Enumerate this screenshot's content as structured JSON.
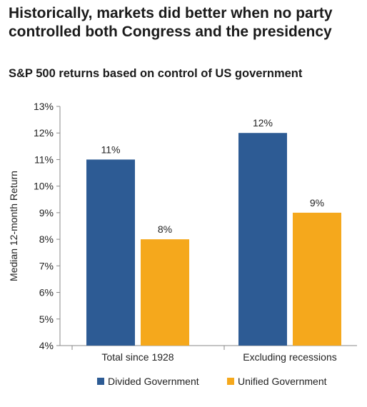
{
  "headline": "Historically, markets did better when no party controlled both Congress and the presidency",
  "chart_data": {
    "type": "bar",
    "title": "S&P 500 returns based on control of US government",
    "xlabel": "",
    "ylabel": "Median 12-month Return",
    "categories": [
      "Total since 1928",
      "Excluding recessions"
    ],
    "series": [
      {
        "name": "Divided Government",
        "values": [
          11,
          12
        ],
        "labels": [
          "11%",
          "12%"
        ],
        "color": "#2d5b94"
      },
      {
        "name": "Unified Government",
        "values": [
          8,
          9
        ],
        "labels": [
          "8%",
          "9%"
        ],
        "color": "#f5a81c"
      }
    ],
    "ylim": [
      4,
      13
    ],
    "yticks": [
      "4%",
      "5%",
      "6%",
      "7%",
      "8%",
      "9%",
      "10%",
      "11%",
      "12%",
      "13%"
    ],
    "grid": false,
    "legend_position": "bottom"
  }
}
